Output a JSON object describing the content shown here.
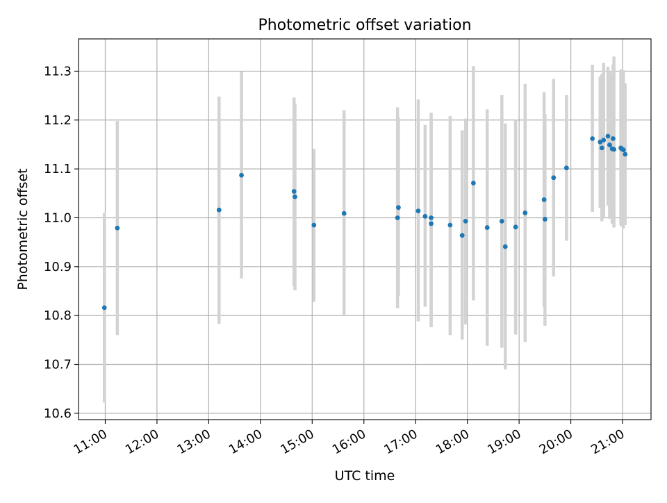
{
  "chart_data": {
    "type": "scatter",
    "title": "Photometric offset variation",
    "xlabel": "UTC time",
    "ylabel": "Photometric offset",
    "xlim": [
      "10:29",
      "21:33"
    ],
    "ylim": [
      10.587,
      11.366
    ],
    "grid": true,
    "x_ticks": [
      "11:00",
      "12:00",
      "13:00",
      "14:00",
      "15:00",
      "16:00",
      "17:00",
      "18:00",
      "19:00",
      "20:00",
      "21:00"
    ],
    "y_ticks": [
      "10.6",
      "10.7",
      "10.8",
      "10.9",
      "11.0",
      "11.1",
      "11.2",
      "11.3"
    ],
    "colors": {
      "point": "#1f77b4",
      "errorbar": "#d3d3d3",
      "grid": "#b0b0b0"
    },
    "series": [
      {
        "points": [
          {
            "x": "10:59",
            "y": 10.816,
            "ylow": 10.622,
            "yhigh": 11.01
          },
          {
            "x": "11:14",
            "y": 10.979,
            "ylow": 10.76,
            "yhigh": 11.198
          },
          {
            "x": "13:12",
            "y": 11.016,
            "ylow": 10.783,
            "yhigh": 11.248
          },
          {
            "x": "13:38",
            "y": 11.087,
            "ylow": 10.876,
            "yhigh": 11.299
          },
          {
            "x": "14:39",
            "y": 11.054,
            "ylow": 10.86,
            "yhigh": 11.246
          },
          {
            "x": "14:40",
            "y": 11.043,
            "ylow": 10.852,
            "yhigh": 11.234
          },
          {
            "x": "15:02",
            "y": 10.985,
            "ylow": 10.828,
            "yhigh": 11.141
          },
          {
            "x": "15:37",
            "y": 11.009,
            "ylow": 10.8,
            "yhigh": 11.22
          },
          {
            "x": "16:39",
            "y": 11.0,
            "ylow": 10.815,
            "yhigh": 11.226
          },
          {
            "x": "16:40",
            "y": 11.021,
            "ylow": 10.84,
            "yhigh": 11.205
          },
          {
            "x": "17:03",
            "y": 11.014,
            "ylow": 10.788,
            "yhigh": 11.242
          },
          {
            "x": "17:11",
            "y": 11.003,
            "ylow": 10.818,
            "yhigh": 11.19
          },
          {
            "x": "17:18",
            "y": 11.0,
            "ylow": 10.776,
            "yhigh": 11.215
          },
          {
            "x": "17:18",
            "y": 10.988,
            "ylow": 10.785,
            "yhigh": 11.2
          },
          {
            "x": "17:40",
            "y": 10.985,
            "ylow": 10.76,
            "yhigh": 11.208
          },
          {
            "x": "17:54",
            "y": 10.964,
            "ylow": 10.751,
            "yhigh": 11.179
          },
          {
            "x": "17:58",
            "y": 10.993,
            "ylow": 10.782,
            "yhigh": 11.203
          },
          {
            "x": "18:07",
            "y": 11.071,
            "ylow": 10.831,
            "yhigh": 11.31
          },
          {
            "x": "18:23",
            "y": 10.98,
            "ylow": 10.738,
            "yhigh": 11.222
          },
          {
            "x": "18:40",
            "y": 10.993,
            "ylow": 10.734,
            "yhigh": 11.251
          },
          {
            "x": "18:44",
            "y": 10.941,
            "ylow": 10.69,
            "yhigh": 11.193
          },
          {
            "x": "18:56",
            "y": 10.981,
            "ylow": 10.761,
            "yhigh": 11.2
          },
          {
            "x": "19:07",
            "y": 11.01,
            "ylow": 10.746,
            "yhigh": 11.274
          },
          {
            "x": "19:29",
            "y": 11.037,
            "ylow": 10.818,
            "yhigh": 11.257
          },
          {
            "x": "19:30",
            "y": 10.997,
            "ylow": 10.779,
            "yhigh": 11.212
          },
          {
            "x": "19:40",
            "y": 11.082,
            "ylow": 10.88,
            "yhigh": 11.284
          },
          {
            "x": "19:55",
            "y": 11.102,
            "ylow": 10.953,
            "yhigh": 11.251
          },
          {
            "x": "20:25",
            "y": 11.162,
            "ylow": 11.012,
            "yhigh": 11.313
          },
          {
            "x": "20:34",
            "y": 11.155,
            "ylow": 11.02,
            "yhigh": 11.289
          },
          {
            "x": "20:36",
            "y": 11.143,
            "ylow": 10.993,
            "yhigh": 11.294
          },
          {
            "x": "20:38",
            "y": 11.159,
            "ylow": 11.0,
            "yhigh": 11.317
          },
          {
            "x": "20:43",
            "y": 11.167,
            "ylow": 11.025,
            "yhigh": 11.309
          },
          {
            "x": "20:45",
            "y": 11.149,
            "ylow": 10.998,
            "yhigh": 11.3
          },
          {
            "x": "20:48",
            "y": 11.141,
            "ylow": 10.988,
            "yhigh": 11.294
          },
          {
            "x": "20:49",
            "y": 11.162,
            "ylow": 11.01,
            "yhigh": 11.314
          },
          {
            "x": "20:50",
            "y": 11.14,
            "ylow": 10.98,
            "yhigh": 11.33
          },
          {
            "x": "20:58",
            "y": 11.143,
            "ylow": 10.985,
            "yhigh": 11.302
          },
          {
            "x": "20:59",
            "y": 11.141,
            "ylow": 10.982,
            "yhigh": 11.304
          },
          {
            "x": "21:01",
            "y": 11.139,
            "ylow": 10.978,
            "yhigh": 11.302
          },
          {
            "x": "21:03",
            "y": 11.13,
            "ylow": 10.985,
            "yhigh": 11.275
          }
        ]
      }
    ]
  }
}
